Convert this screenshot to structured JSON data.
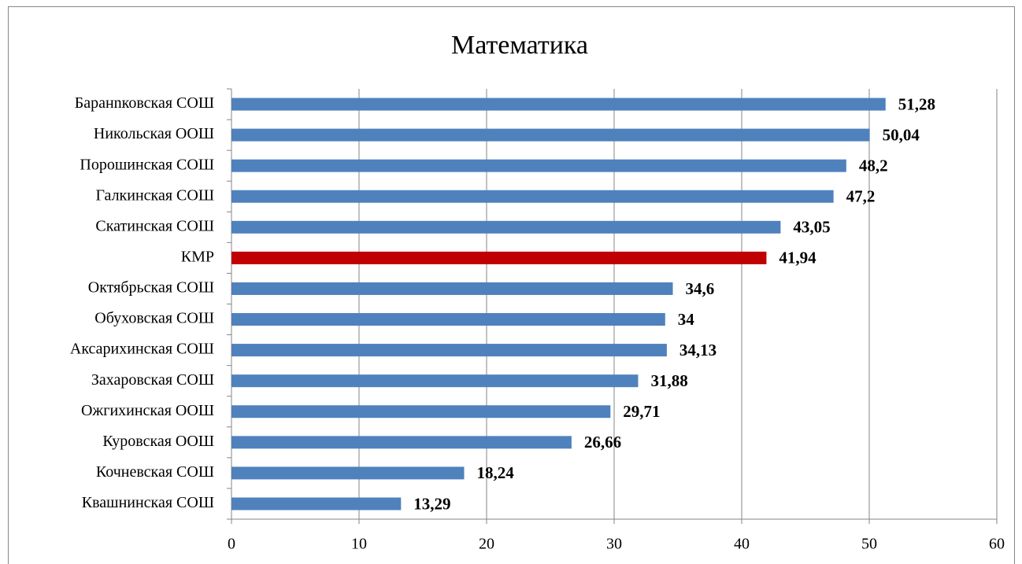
{
  "chart_data": {
    "type": "barh",
    "title": "Математика",
    "categories": [
      "Баранnковская СОШ",
      "Никольская ООШ",
      "Порошинская СОШ",
      "Галкинская СОШ",
      "Скатинская СОШ",
      "КМР",
      "Октябрьская СОШ",
      "Обуховская СОШ",
      "Аксарихинская СОШ",
      "Захаровская СОШ",
      "Ожгихинская ООШ",
      "Куровская ООШ",
      "Кочневская СОШ",
      "Квашнинская СОШ"
    ],
    "values": [
      51.28,
      50.04,
      48.2,
      47.2,
      43.05,
      41.94,
      34.6,
      34,
      34.13,
      31.88,
      29.71,
      26.66,
      18.24,
      13.29
    ],
    "value_labels": [
      "51,28",
      "50,04",
      "48,2",
      "47,2",
      "43,05",
      "41,94",
      "34,6",
      "34",
      "34,13",
      "31,88",
      "29,71",
      "26,66",
      "18,24",
      "13,29"
    ],
    "colors": [
      "#4f81bd",
      "#4f81bd",
      "#4f81bd",
      "#4f81bd",
      "#4f81bd",
      "#c00000",
      "#4f81bd",
      "#4f81bd",
      "#4f81bd",
      "#4f81bd",
      "#4f81bd",
      "#4f81bd",
      "#4f81bd",
      "#4f81bd"
    ],
    "xlim": [
      0,
      60
    ],
    "xticks": [
      0,
      10,
      20,
      30,
      40,
      50,
      60
    ],
    "grid": true
  }
}
